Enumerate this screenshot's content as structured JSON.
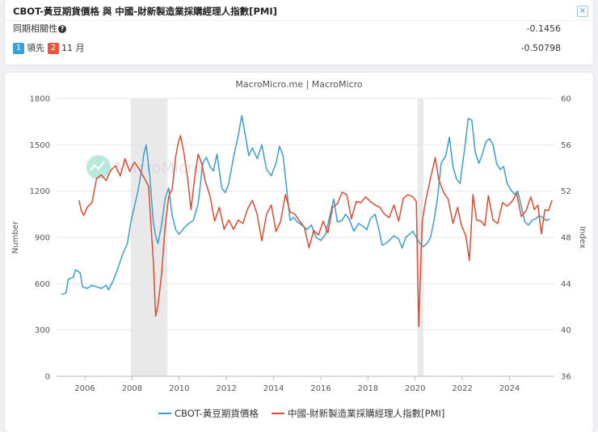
{
  "info": {
    "title": "CBOT-黃豆期貨價格 與 中國-財新製造業採購經理人指數[PMI]",
    "close_symbol": "×",
    "corr_label": "同期相關性",
    "help_symbol": "?",
    "corr_value": "-0.1456",
    "lead_badge1": "1",
    "lead_text1": "領先",
    "lead_badge2": "2",
    "lead_text2": "11 月",
    "lead_value": "-0.50798"
  },
  "chart_data": {
    "type": "line",
    "title": "MacroMicro.me | MacroMicro",
    "watermark": "MacroMicro",
    "xlabel": "",
    "ylabel_left": "Number",
    "ylabel_right": "Index",
    "xlim": [
      2004.8,
      2025.9
    ],
    "x_ticks": [
      "2006",
      "2008",
      "2010",
      "2012",
      "2014",
      "2016",
      "2018",
      "2020",
      "2022",
      "2024"
    ],
    "y_left": {
      "min": 0,
      "max": 1800,
      "ticks": [
        "0",
        "300",
        "600",
        "900",
        "1200",
        "1500",
        "1800"
      ]
    },
    "y_right": {
      "min": 36,
      "max": 60,
      "ticks": [
        "36",
        "40",
        "44",
        "48",
        "52",
        "56",
        "60"
      ]
    },
    "grid": true,
    "recessions": [
      [
        2007.95,
        2009.5
      ],
      [
        2020.1,
        2020.35
      ]
    ],
    "colors": {
      "cbot": "#3a9fd0",
      "pmi": "#e04a32",
      "recession": "#e9e9e9"
    },
    "series": [
      {
        "name": "CBOT-黃豆期貨價格",
        "axis": "left",
        "color": "#3a9fd0",
        "points": [
          [
            2005.0,
            530
          ],
          [
            2005.2,
            540
          ],
          [
            2005.3,
            630
          ],
          [
            2005.5,
            640
          ],
          [
            2005.6,
            690
          ],
          [
            2005.8,
            670
          ],
          [
            2005.9,
            580
          ],
          [
            2006.1,
            570
          ],
          [
            2006.3,
            590
          ],
          [
            2006.5,
            580
          ],
          [
            2006.7,
            570
          ],
          [
            2006.9,
            590
          ],
          [
            2007.0,
            560
          ],
          [
            2007.2,
            620
          ],
          [
            2007.4,
            700
          ],
          [
            2007.6,
            790
          ],
          [
            2007.8,
            860
          ],
          [
            2007.95,
            1000
          ],
          [
            2008.1,
            1100
          ],
          [
            2008.25,
            1200
          ],
          [
            2008.4,
            1330
          ],
          [
            2008.5,
            1440
          ],
          [
            2008.6,
            1500
          ],
          [
            2008.75,
            1300
          ],
          [
            2008.9,
            1000
          ],
          [
            2009.0,
            910
          ],
          [
            2009.1,
            860
          ],
          [
            2009.25,
            980
          ],
          [
            2009.4,
            1150
          ],
          [
            2009.55,
            1220
          ],
          [
            2009.7,
            1040
          ],
          [
            2009.85,
            950
          ],
          [
            2010.0,
            920
          ],
          [
            2010.2,
            960
          ],
          [
            2010.4,
            990
          ],
          [
            2010.6,
            1010
          ],
          [
            2010.8,
            1120
          ],
          [
            2011.0,
            1380
          ],
          [
            2011.15,
            1420
          ],
          [
            2011.3,
            1360
          ],
          [
            2011.45,
            1330
          ],
          [
            2011.6,
            1440
          ],
          [
            2011.8,
            1220
          ],
          [
            2011.95,
            1190
          ],
          [
            2012.1,
            1250
          ],
          [
            2012.3,
            1420
          ],
          [
            2012.5,
            1560
          ],
          [
            2012.65,
            1690
          ],
          [
            2012.8,
            1560
          ],
          [
            2012.95,
            1430
          ],
          [
            2013.1,
            1480
          ],
          [
            2013.3,
            1410
          ],
          [
            2013.5,
            1500
          ],
          [
            2013.7,
            1340
          ],
          [
            2013.9,
            1300
          ],
          [
            2014.1,
            1380
          ],
          [
            2014.25,
            1490
          ],
          [
            2014.4,
            1430
          ],
          [
            2014.55,
            1220
          ],
          [
            2014.7,
            1010
          ],
          [
            2014.85,
            1030
          ],
          [
            2015.0,
            1000
          ],
          [
            2015.2,
            980
          ],
          [
            2015.4,
            950
          ],
          [
            2015.6,
            980
          ],
          [
            2015.8,
            900
          ],
          [
            2016.0,
            880
          ],
          [
            2016.2,
            920
          ],
          [
            2016.4,
            1050
          ],
          [
            2016.55,
            1150
          ],
          [
            2016.7,
            1000
          ],
          [
            2016.9,
            1010
          ],
          [
            2017.05,
            1050
          ],
          [
            2017.2,
            1020
          ],
          [
            2017.4,
            940
          ],
          [
            2017.6,
            990
          ],
          [
            2017.8,
            970
          ],
          [
            2017.95,
            950
          ],
          [
            2018.1,
            1020
          ],
          [
            2018.3,
            1050
          ],
          [
            2018.45,
            960
          ],
          [
            2018.6,
            850
          ],
          [
            2018.75,
            860
          ],
          [
            2018.9,
            880
          ],
          [
            2019.1,
            910
          ],
          [
            2019.3,
            890
          ],
          [
            2019.45,
            830
          ],
          [
            2019.6,
            900
          ],
          [
            2019.75,
            920
          ],
          [
            2019.9,
            940
          ],
          [
            2020.05,
            900
          ],
          [
            2020.2,
            860
          ],
          [
            2020.35,
            840
          ],
          [
            2020.5,
            860
          ],
          [
            2020.65,
            900
          ],
          [
            2020.8,
            1010
          ],
          [
            2020.95,
            1160
          ],
          [
            2021.1,
            1380
          ],
          [
            2021.3,
            1430
          ],
          [
            2021.45,
            1550
          ],
          [
            2021.6,
            1360
          ],
          [
            2021.75,
            1280
          ],
          [
            2021.9,
            1250
          ],
          [
            2022.1,
            1480
          ],
          [
            2022.25,
            1670
          ],
          [
            2022.4,
            1660
          ],
          [
            2022.55,
            1450
          ],
          [
            2022.7,
            1380
          ],
          [
            2022.85,
            1440
          ],
          [
            2023.0,
            1520
          ],
          [
            2023.15,
            1540
          ],
          [
            2023.3,
            1500
          ],
          [
            2023.45,
            1380
          ],
          [
            2023.6,
            1340
          ],
          [
            2023.75,
            1360
          ],
          [
            2023.9,
            1250
          ],
          [
            2024.05,
            1210
          ],
          [
            2024.2,
            1180
          ],
          [
            2024.35,
            1200
          ],
          [
            2024.5,
            1100
          ],
          [
            2024.65,
            1000
          ],
          [
            2024.8,
            980
          ],
          [
            2024.95,
            1010
          ],
          [
            2025.1,
            1020
          ],
          [
            2025.25,
            1040
          ],
          [
            2025.4,
            1030
          ],
          [
            2025.55,
            1010
          ],
          [
            2025.7,
            1020
          ]
        ]
      },
      {
        "name": "中國-財新製造業採購經理人指數[PMI]",
        "axis": "right",
        "color": "#e04a32",
        "points": [
          [
            2005.75,
            51.2
          ],
          [
            2005.85,
            50.3
          ],
          [
            2005.95,
            49.9
          ],
          [
            2006.1,
            50.6
          ],
          [
            2006.3,
            51.0
          ],
          [
            2006.5,
            53.1
          ],
          [
            2006.7,
            53.4
          ],
          [
            2006.9,
            52.9
          ],
          [
            2007.1,
            53.8
          ],
          [
            2007.3,
            54.2
          ],
          [
            2007.5,
            53.3
          ],
          [
            2007.7,
            54.8
          ],
          [
            2007.9,
            53.7
          ],
          [
            2008.1,
            54.5
          ],
          [
            2008.3,
            53.9
          ],
          [
            2008.5,
            53.2
          ],
          [
            2008.7,
            52.4
          ],
          [
            2008.8,
            49.1
          ],
          [
            2008.9,
            46.0
          ],
          [
            2009.0,
            41.2
          ],
          [
            2009.1,
            42.1
          ],
          [
            2009.25,
            44.8
          ],
          [
            2009.4,
            48.9
          ],
          [
            2009.55,
            51.5
          ],
          [
            2009.7,
            52.2
          ],
          [
            2009.85,
            55.0
          ],
          [
            2009.95,
            56.1
          ],
          [
            2010.05,
            56.8
          ],
          [
            2010.2,
            55.3
          ],
          [
            2010.35,
            53.2
          ],
          [
            2010.5,
            50.4
          ],
          [
            2010.65,
            53.1
          ],
          [
            2010.8,
            55.2
          ],
          [
            2010.95,
            54.4
          ],
          [
            2011.1,
            52.9
          ],
          [
            2011.3,
            51.6
          ],
          [
            2011.5,
            49.4
          ],
          [
            2011.7,
            50.6
          ],
          [
            2011.9,
            48.7
          ],
          [
            2012.1,
            49.5
          ],
          [
            2012.3,
            48.7
          ],
          [
            2012.5,
            49.5
          ],
          [
            2012.7,
            49.2
          ],
          [
            2012.9,
            50.5
          ],
          [
            2013.1,
            51.2
          ],
          [
            2013.3,
            50.0
          ],
          [
            2013.5,
            47.7
          ],
          [
            2013.7,
            50.0
          ],
          [
            2013.9,
            50.8
          ],
          [
            2014.1,
            48.5
          ],
          [
            2014.3,
            49.4
          ],
          [
            2014.5,
            51.7
          ],
          [
            2014.7,
            50.2
          ],
          [
            2014.9,
            50.0
          ],
          [
            2015.1,
            49.4
          ],
          [
            2015.3,
            48.9
          ],
          [
            2015.5,
            47.1
          ],
          [
            2015.7,
            48.6
          ],
          [
            2015.9,
            48.2
          ],
          [
            2016.1,
            49.4
          ],
          [
            2016.3,
            48.4
          ],
          [
            2016.5,
            50.6
          ],
          [
            2016.7,
            50.9
          ],
          [
            2016.9,
            51.9
          ],
          [
            2017.1,
            51.7
          ],
          [
            2017.3,
            49.6
          ],
          [
            2017.5,
            51.1
          ],
          [
            2017.7,
            51.0
          ],
          [
            2017.9,
            51.5
          ],
          [
            2018.1,
            51.1
          ],
          [
            2018.3,
            50.8
          ],
          [
            2018.5,
            50.6
          ],
          [
            2018.7,
            50.0
          ],
          [
            2018.9,
            49.7
          ],
          [
            2019.1,
            50.8
          ],
          [
            2019.3,
            49.4
          ],
          [
            2019.5,
            51.4
          ],
          [
            2019.7,
            51.7
          ],
          [
            2019.9,
            51.5
          ],
          [
            2020.05,
            51.1
          ],
          [
            2020.15,
            40.3
          ],
          [
            2020.3,
            49.4
          ],
          [
            2020.45,
            51.2
          ],
          [
            2020.65,
            53.1
          ],
          [
            2020.85,
            54.9
          ],
          [
            2021.0,
            53.0
          ],
          [
            2021.2,
            51.9
          ],
          [
            2021.4,
            51.3
          ],
          [
            2021.6,
            49.2
          ],
          [
            2021.8,
            50.6
          ],
          [
            2021.95,
            49.1
          ],
          [
            2022.15,
            48.1
          ],
          [
            2022.3,
            46.0
          ],
          [
            2022.45,
            51.7
          ],
          [
            2022.6,
            49.5
          ],
          [
            2022.8,
            49.4
          ],
          [
            2022.95,
            49.0
          ],
          [
            2023.1,
            51.6
          ],
          [
            2023.3,
            49.5
          ],
          [
            2023.5,
            49.2
          ],
          [
            2023.7,
            51.0
          ],
          [
            2023.9,
            50.7
          ],
          [
            2024.1,
            51.1
          ],
          [
            2024.3,
            51.8
          ],
          [
            2024.5,
            49.8
          ],
          [
            2024.7,
            50.3
          ],
          [
            2024.9,
            51.5
          ],
          [
            2025.05,
            50.4
          ],
          [
            2025.2,
            50.8
          ],
          [
            2025.35,
            48.3
          ],
          [
            2025.5,
            50.4
          ],
          [
            2025.65,
            50.3
          ],
          [
            2025.8,
            51.2
          ]
        ]
      }
    ]
  }
}
